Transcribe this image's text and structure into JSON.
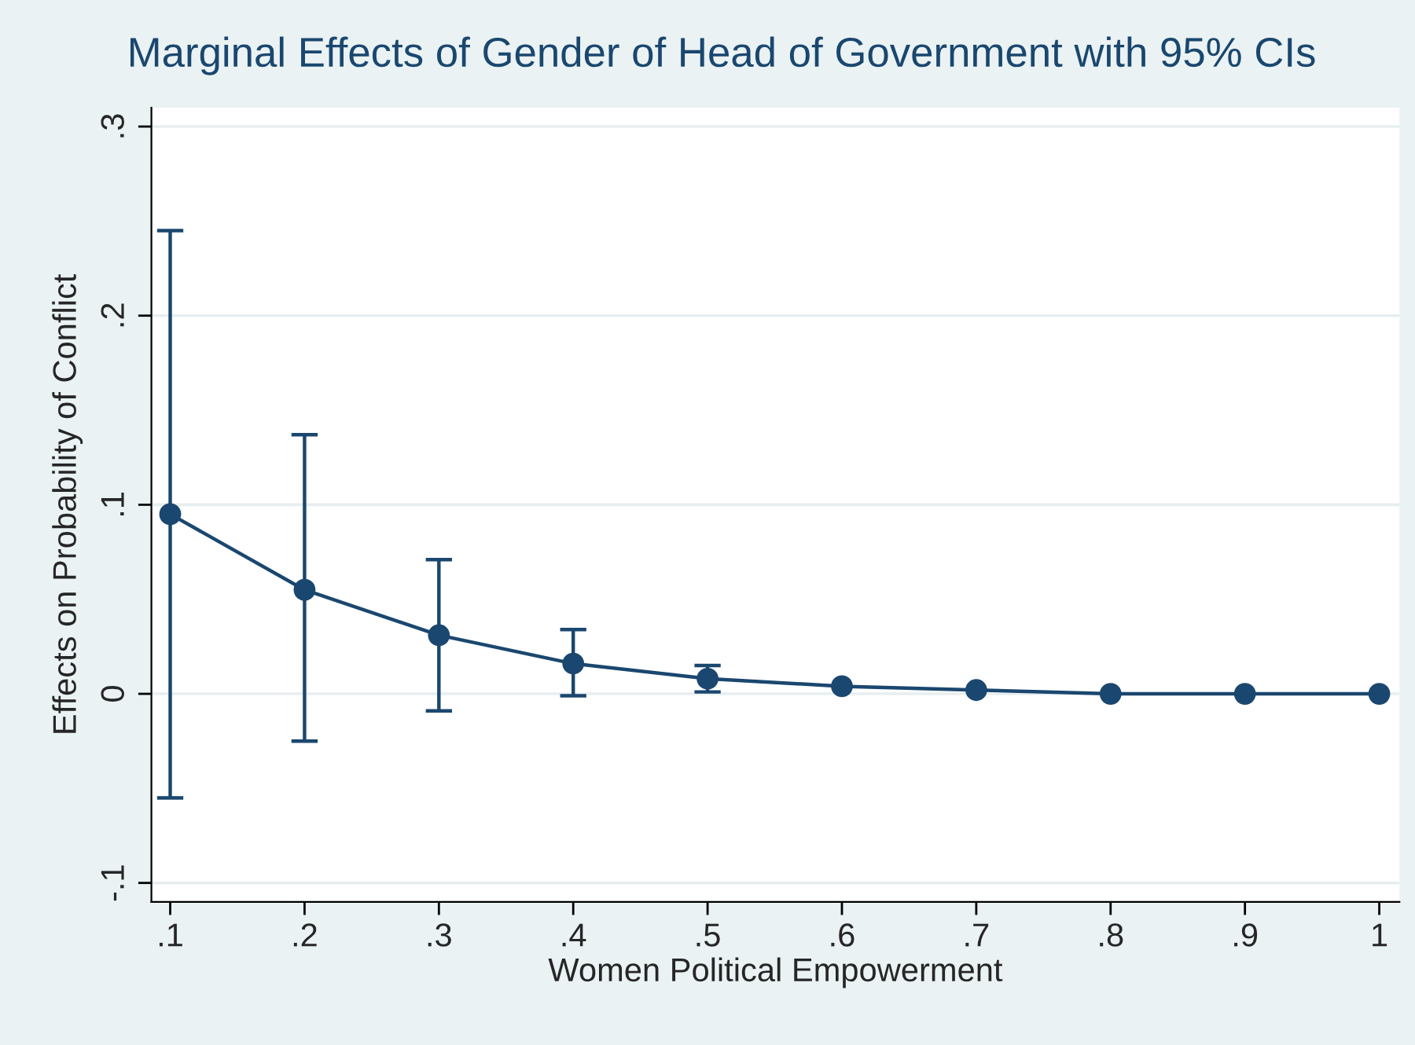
{
  "chart_data": {
    "type": "line",
    "title": "Marginal Effects of Gender of Head of Government with 95% CIs",
    "xlabel": "Women Political Empowerment",
    "ylabel": "Effects on Probability of Conflict",
    "x": [
      0.1,
      0.2,
      0.3,
      0.4,
      0.5,
      0.6,
      0.7,
      0.8,
      0.9,
      1.0
    ],
    "series": [
      {
        "color": "#1a476f",
        "values": [
          0.095,
          0.055,
          0.031,
          0.016,
          0.008,
          0.004,
          0.002,
          0.0,
          0.0,
          0.0
        ],
        "errors": [
          [
            -0.055,
            0.245
          ],
          [
            -0.025,
            0.137
          ],
          [
            -0.009,
            0.071
          ],
          [
            -0.001,
            0.034
          ],
          [
            0.001,
            0.015
          ],
          null,
          null,
          null,
          null,
          null
        ]
      }
    ],
    "marker": "circle",
    "line_style": "solid",
    "grid": "y",
    "xlim": [
      0.086,
      1.015
    ],
    "ylim": [
      -0.11,
      0.31
    ],
    "xticks": [
      {
        "value": 0.1,
        "label": ".1"
      },
      {
        "value": 0.2,
        "label": ".2"
      },
      {
        "value": 0.3,
        "label": ".3"
      },
      {
        "value": 0.4,
        "label": ".4"
      },
      {
        "value": 0.5,
        "label": ".5"
      },
      {
        "value": 0.6,
        "label": ".6"
      },
      {
        "value": 0.7,
        "label": ".7"
      },
      {
        "value": 0.8,
        "label": ".8"
      },
      {
        "value": 0.9,
        "label": ".9"
      },
      1
    ],
    "yticks": [
      {
        "value": -0.1,
        "label": "-.1"
      },
      0,
      {
        "value": 0.1,
        "label": ".1"
      },
      {
        "value": 0.2,
        "label": ".2"
      },
      {
        "value": 0.3,
        "label": ".3"
      }
    ]
  }
}
